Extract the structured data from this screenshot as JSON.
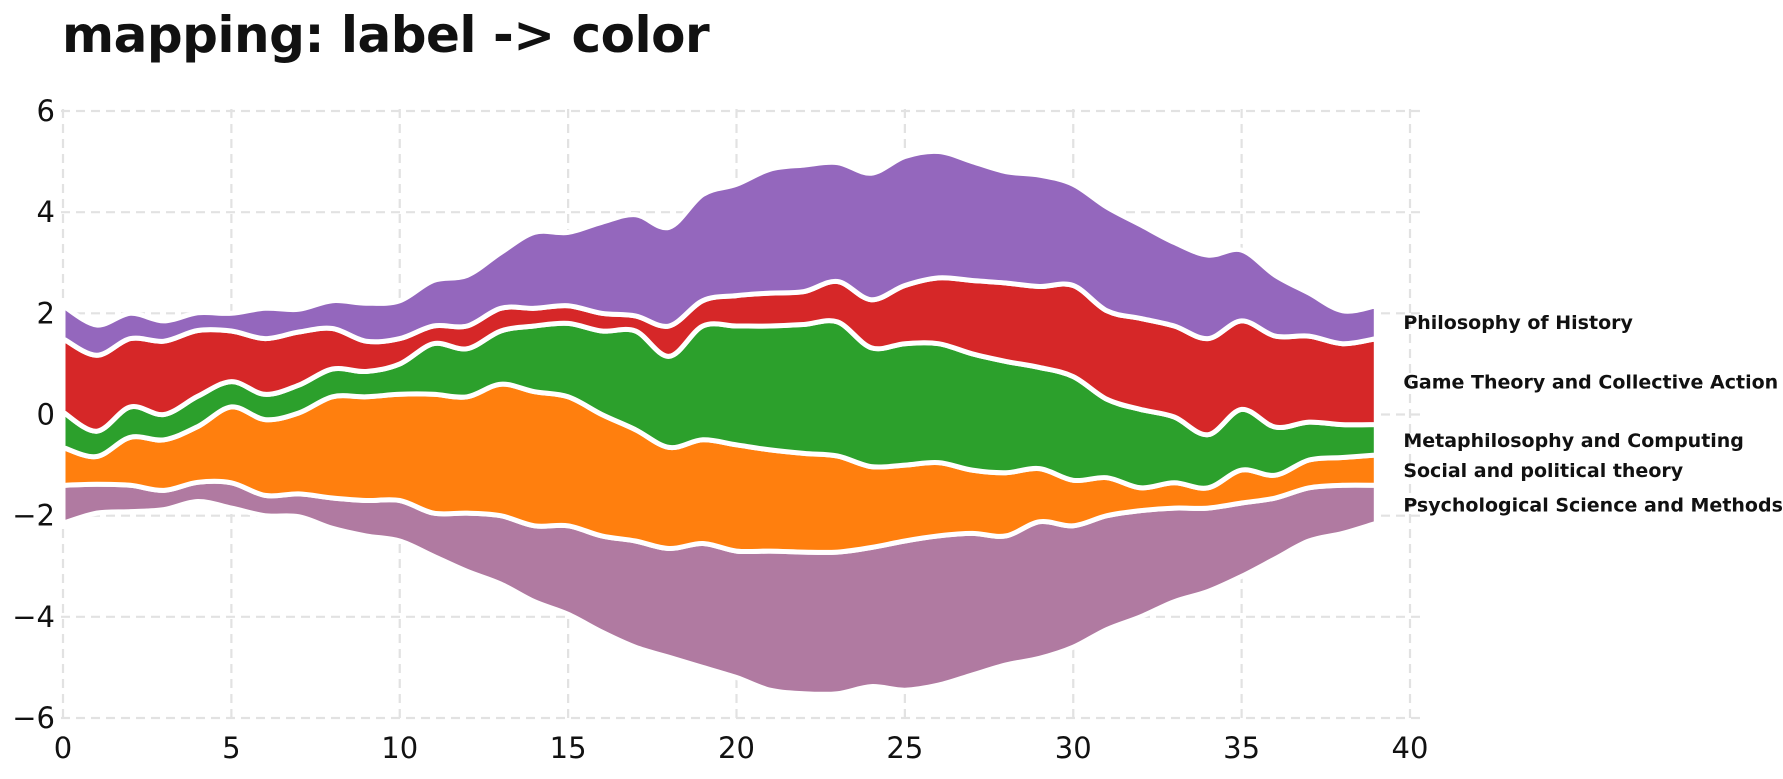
{
  "chart_data": {
    "type": "area",
    "subtype": "streamgraph",
    "title": "mapping: label -> color",
    "xlabel": "",
    "ylabel": "",
    "xlim": [
      0,
      40
    ],
    "ylim": [
      -6,
      6
    ],
    "xticks": [
      0,
      5,
      10,
      15,
      20,
      25,
      30,
      35,
      40
    ],
    "yticks": [
      -6,
      -4,
      -2,
      0,
      2,
      4,
      6
    ],
    "xtick_labels": [
      "0",
      "5",
      "10",
      "15",
      "20",
      "25",
      "30",
      "35",
      "40"
    ],
    "ytick_labels": [
      "−6",
      "−4",
      "−2",
      "0",
      "2",
      "4",
      "6"
    ],
    "grid": true,
    "legend": "inline-right",
    "x": [
      0,
      1,
      2,
      3,
      4,
      5,
      6,
      7,
      8,
      9,
      10,
      11,
      12,
      13,
      14,
      15,
      16,
      17,
      18,
      19,
      20,
      21,
      22,
      23,
      24,
      25,
      26,
      27,
      28,
      29,
      30,
      31,
      32,
      33,
      34,
      35,
      36,
      37,
      38,
      39
    ],
    "baseline": [
      -2.15,
      -1.95,
      -1.92,
      -1.88,
      -1.72,
      -1.85,
      -2.0,
      -2.02,
      -2.25,
      -2.4,
      -2.5,
      -2.8,
      -3.1,
      -3.35,
      -3.7,
      -3.95,
      -4.3,
      -4.6,
      -4.8,
      -5.0,
      -5.2,
      -5.45,
      -5.52,
      -5.52,
      -5.38,
      -5.45,
      -5.35,
      -5.15,
      -4.95,
      -4.82,
      -4.6,
      -4.25,
      -4.0,
      -3.7,
      -3.5,
      -3.2,
      -2.85,
      -2.5,
      -2.35,
      -2.15
    ],
    "series": [
      {
        "name": "Psychological Science and Methods",
        "color": "#b07aa1",
        "values": [
          0.75,
          0.57,
          0.52,
          0.38,
          0.38,
          0.5,
          0.4,
          0.45,
          0.6,
          0.7,
          0.8,
          0.85,
          1.15,
          1.35,
          1.5,
          1.75,
          1.9,
          2.1,
          2.15,
          2.45,
          2.5,
          2.75,
          2.8,
          2.8,
          2.75,
          2.95,
          2.95,
          2.8,
          2.55,
          2.7,
          2.4,
          2.25,
          2.1,
          1.85,
          1.65,
          1.45,
          1.2,
          1.05,
          0.95,
          0.75
        ]
      },
      {
        "name": "Social and political theory",
        "color": "#ff7f0e",
        "values": [
          0.75,
          0.55,
          0.95,
          1.0,
          1.1,
          1.5,
          1.5,
          1.6,
          2.0,
          2.05,
          2.1,
          2.35,
          2.3,
          2.6,
          2.65,
          2.55,
          2.4,
          2.2,
          2.0,
          2.05,
          2.1,
          2.0,
          1.95,
          1.9,
          1.6,
          1.5,
          1.45,
          1.25,
          1.25,
          1.05,
          0.9,
          0.75,
          0.45,
          0.5,
          0.4,
          0.65,
          0.45,
          0.55,
          0.55,
          0.6
        ]
      },
      {
        "name": "Metaphilosophy and Computing",
        "color": "#2ca02c",
        "values": [
          0.7,
          0.5,
          0.6,
          0.5,
          0.6,
          0.5,
          0.5,
          0.55,
          0.55,
          0.5,
          0.6,
          1.0,
          0.95,
          1.05,
          1.3,
          1.45,
          1.65,
          1.95,
          1.8,
          2.25,
          2.35,
          2.45,
          2.55,
          2.65,
          2.35,
          2.4,
          2.35,
          2.3,
          2.2,
          2.0,
          2.05,
          1.55,
          1.55,
          1.3,
          1.05,
          1.2,
          0.95,
          0.75,
          0.65,
          0.6
        ]
      },
      {
        "name": "Game Theory and Collective Action",
        "color": "#d62728",
        "values": [
          1.45,
          1.5,
          1.35,
          1.45,
          1.3,
          1.0,
          1.1,
          1.05,
          0.8,
          0.6,
          0.5,
          0.35,
          0.45,
          0.45,
          0.35,
          0.35,
          0.35,
          0.3,
          0.6,
          0.5,
          0.6,
          0.65,
          0.65,
          0.8,
          0.95,
          1.15,
          1.3,
          1.45,
          1.55,
          1.6,
          1.8,
          1.75,
          1.8,
          1.8,
          1.9,
          1.75,
          1.8,
          1.7,
          1.6,
          1.7
        ]
      },
      {
        "name": "Philosophy of History",
        "color": "#9467bd",
        "values": [
          0.65,
          0.6,
          0.5,
          0.4,
          0.35,
          0.35,
          0.6,
          0.45,
          0.55,
          0.75,
          0.75,
          0.9,
          1.0,
          1.1,
          1.5,
          1.45,
          1.8,
          2.0,
          1.95,
          2.1,
          2.2,
          2.45,
          2.5,
          2.35,
          2.5,
          2.55,
          2.5,
          2.35,
          2.2,
          2.2,
          2.0,
          2.05,
          1.85,
          1.65,
          1.65,
          1.4,
          1.2,
          0.85,
          0.65,
          0.65
        ]
      }
    ]
  }
}
